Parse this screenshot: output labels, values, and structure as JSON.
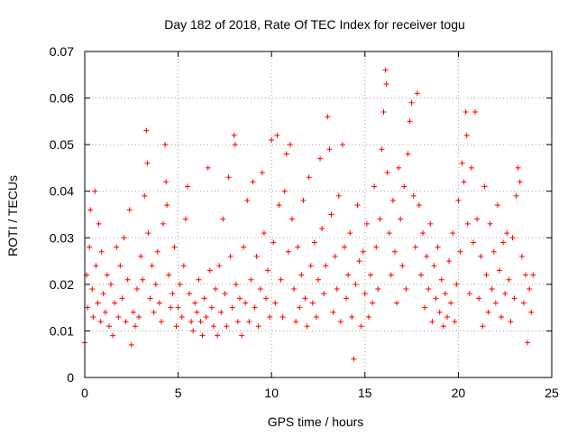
{
  "chart_data": {
    "type": "scatter",
    "title": "Day 182 of 2018, Rate Of TEC Index for receiver togu",
    "xlabel": "GPS time / hours",
    "ylabel": "ROTI / TECUs",
    "xlim": [
      0,
      25
    ],
    "ylim": [
      0,
      0.07
    ],
    "xticks": [
      0,
      5,
      10,
      15,
      20,
      25
    ],
    "xtick_labels": [
      "0",
      "5",
      "10",
      "15",
      "20",
      "25"
    ],
    "yticks": [
      0,
      0.01,
      0.02,
      0.03,
      0.04,
      0.05,
      0.06,
      0.07
    ],
    "ytick_labels": [
      "0",
      "0.01",
      "0.02",
      "0.03",
      "0.04",
      "0.05",
      "0.06",
      "0.07"
    ],
    "grid": true,
    "marker": "plus",
    "color": "#ff0000",
    "series": [
      {
        "name": "ROTI",
        "points": [
          [
            0.0,
            0.0075
          ],
          [
            0.1,
            0.022
          ],
          [
            0.15,
            0.015
          ],
          [
            0.25,
            0.028
          ],
          [
            0.3,
            0.036
          ],
          [
            0.4,
            0.019
          ],
          [
            0.45,
            0.013
          ],
          [
            0.55,
            0.04
          ],
          [
            0.6,
            0.024
          ],
          [
            0.7,
            0.016
          ],
          [
            0.75,
            0.033
          ],
          [
            0.85,
            0.012
          ],
          [
            0.9,
            0.027
          ],
          [
            1.0,
            0.018
          ],
          [
            1.1,
            0.014
          ],
          [
            1.2,
            0.022
          ],
          [
            1.3,
            0.011
          ],
          [
            1.4,
            0.02
          ],
          [
            1.5,
            0.009
          ],
          [
            1.6,
            0.016
          ],
          [
            1.7,
            0.028
          ],
          [
            1.8,
            0.013
          ],
          [
            1.9,
            0.024
          ],
          [
            2.0,
            0.017
          ],
          [
            2.1,
            0.03
          ],
          [
            2.2,
            0.012
          ],
          [
            2.3,
            0.021
          ],
          [
            2.4,
            0.036
          ],
          [
            2.5,
            0.007
          ],
          [
            2.6,
            0.014
          ],
          [
            2.7,
            0.011
          ],
          [
            2.8,
            0.019
          ],
          [
            2.9,
            0.013
          ],
          [
            3.0,
            0.026
          ],
          [
            3.1,
            0.021
          ],
          [
            3.2,
            0.039
          ],
          [
            3.3,
            0.053
          ],
          [
            3.35,
            0.046
          ],
          [
            3.4,
            0.031
          ],
          [
            3.5,
            0.017
          ],
          [
            3.6,
            0.024
          ],
          [
            3.7,
            0.014
          ],
          [
            3.8,
            0.02
          ],
          [
            3.9,
            0.027
          ],
          [
            4.0,
            0.016
          ],
          [
            4.1,
            0.012
          ],
          [
            4.2,
            0.033
          ],
          [
            4.3,
            0.05
          ],
          [
            4.35,
            0.042
          ],
          [
            4.4,
            0.037
          ],
          [
            4.5,
            0.022
          ],
          [
            4.6,
            0.015
          ],
          [
            4.7,
            0.018
          ],
          [
            4.8,
            0.028
          ],
          [
            4.9,
            0.011
          ],
          [
            5.0,
            0.015
          ],
          [
            5.1,
            0.02
          ],
          [
            5.2,
            0.013
          ],
          [
            5.3,
            0.024
          ],
          [
            5.4,
            0.034
          ],
          [
            5.5,
            0.041
          ],
          [
            5.6,
            0.018
          ],
          [
            5.7,
            0.012
          ],
          [
            5.8,
            0.01
          ],
          [
            5.9,
            0.016
          ],
          [
            6.0,
            0.014
          ],
          [
            6.1,
            0.021
          ],
          [
            6.2,
            0.012
          ],
          [
            6.3,
            0.009
          ],
          [
            6.4,
            0.017
          ],
          [
            6.5,
            0.013
          ],
          [
            6.6,
            0.045
          ],
          [
            6.7,
            0.023
          ],
          [
            6.8,
            0.015
          ],
          [
            6.9,
            0.011
          ],
          [
            7.0,
            0.019
          ],
          [
            7.1,
            0.009
          ],
          [
            7.2,
            0.024
          ],
          [
            7.3,
            0.014
          ],
          [
            7.4,
            0.034
          ],
          [
            7.5,
            0.018
          ],
          [
            7.6,
            0.011
          ],
          [
            7.7,
            0.043
          ],
          [
            7.8,
            0.026
          ],
          [
            7.9,
            0.015
          ],
          [
            8.0,
            0.052
          ],
          [
            8.05,
            0.05
          ],
          [
            8.1,
            0.02
          ],
          [
            8.2,
            0.012
          ],
          [
            8.3,
            0.017
          ],
          [
            8.4,
            0.009
          ],
          [
            8.5,
            0.028
          ],
          [
            8.6,
            0.016
          ],
          [
            8.7,
            0.038
          ],
          [
            8.8,
            0.012
          ],
          [
            8.9,
            0.021
          ],
          [
            9.0,
            0.042
          ],
          [
            9.1,
            0.015
          ],
          [
            9.2,
            0.026
          ],
          [
            9.3,
            0.011
          ],
          [
            9.4,
            0.019
          ],
          [
            9.5,
            0.044
          ],
          [
            9.6,
            0.031
          ],
          [
            9.7,
            0.017
          ],
          [
            9.8,
            0.023
          ],
          [
            9.9,
            0.013
          ],
          [
            10.0,
            0.051
          ],
          [
            10.1,
            0.029
          ],
          [
            10.2,
            0.016
          ],
          [
            10.3,
            0.052
          ],
          [
            10.4,
            0.037
          ],
          [
            10.5,
            0.021
          ],
          [
            10.6,
            0.013
          ],
          [
            10.7,
            0.04
          ],
          [
            10.8,
            0.048
          ],
          [
            10.9,
            0.027
          ],
          [
            11.0,
            0.05
          ],
          [
            11.1,
            0.034
          ],
          [
            11.2,
            0.019
          ],
          [
            11.3,
            0.012
          ],
          [
            11.4,
            0.028
          ],
          [
            11.5,
            0.015
          ],
          [
            11.6,
            0.022
          ],
          [
            11.7,
            0.038
          ],
          [
            11.8,
            0.017
          ],
          [
            11.9,
            0.011
          ],
          [
            12.0,
            0.043
          ],
          [
            12.1,
            0.024
          ],
          [
            12.2,
            0.016
          ],
          [
            12.3,
            0.029
          ],
          [
            12.4,
            0.013
          ],
          [
            12.5,
            0.021
          ],
          [
            12.6,
            0.047
          ],
          [
            12.7,
            0.032
          ],
          [
            12.8,
            0.018
          ],
          [
            12.9,
            0.024
          ],
          [
            13.0,
            0.056
          ],
          [
            13.1,
            0.049
          ],
          [
            13.2,
            0.035
          ],
          [
            13.3,
            0.014
          ],
          [
            13.4,
            0.026
          ],
          [
            13.5,
            0.019
          ],
          [
            13.6,
            0.039
          ],
          [
            13.7,
            0.012
          ],
          [
            13.8,
            0.05
          ],
          [
            13.9,
            0.028
          ],
          [
            14.0,
            0.017
          ],
          [
            14.1,
            0.022
          ],
          [
            14.2,
            0.031
          ],
          [
            14.3,
            0.013
          ],
          [
            14.4,
            0.004
          ],
          [
            14.5,
            0.02
          ],
          [
            14.6,
            0.037
          ],
          [
            14.7,
            0.025
          ],
          [
            14.8,
            0.011
          ],
          [
            14.9,
            0.027
          ],
          [
            15.0,
            0.018
          ],
          [
            15.1,
            0.033
          ],
          [
            15.2,
            0.013
          ],
          [
            15.3,
            0.022
          ],
          [
            15.4,
            0.016
          ],
          [
            15.5,
            0.041
          ],
          [
            15.6,
            0.028
          ],
          [
            15.7,
            0.019
          ],
          [
            15.8,
            0.034
          ],
          [
            15.9,
            0.049
          ],
          [
            16.0,
            0.057
          ],
          [
            16.1,
            0.066
          ],
          [
            16.15,
            0.063
          ],
          [
            16.2,
            0.044
          ],
          [
            16.3,
            0.031
          ],
          [
            16.4,
            0.022
          ],
          [
            16.5,
            0.038
          ],
          [
            16.6,
            0.027
          ],
          [
            16.7,
            0.016
          ],
          [
            16.8,
            0.045
          ],
          [
            16.9,
            0.034
          ],
          [
            17.0,
            0.024
          ],
          [
            17.1,
            0.041
          ],
          [
            17.2,
            0.019
          ],
          [
            17.3,
            0.048
          ],
          [
            17.4,
            0.055
          ],
          [
            17.5,
            0.059
          ],
          [
            17.6,
            0.039
          ],
          [
            17.7,
            0.028
          ],
          [
            17.8,
            0.061
          ],
          [
            17.9,
            0.037
          ],
          [
            18.0,
            0.022
          ],
          [
            18.1,
            0.031
          ],
          [
            18.2,
            0.015
          ],
          [
            18.3,
            0.026
          ],
          [
            18.4,
            0.019
          ],
          [
            18.5,
            0.033
          ],
          [
            18.6,
            0.012
          ],
          [
            18.7,
            0.024
          ],
          [
            18.8,
            0.017
          ],
          [
            18.9,
            0.028
          ],
          [
            19.0,
            0.014
          ],
          [
            19.1,
            0.021
          ],
          [
            19.2,
            0.011
          ],
          [
            19.3,
            0.018
          ],
          [
            19.4,
            0.013
          ],
          [
            19.5,
            0.025
          ],
          [
            19.6,
            0.016
          ],
          [
            19.7,
            0.031
          ],
          [
            19.8,
            0.012
          ],
          [
            19.9,
            0.02
          ],
          [
            20.0,
            0.038
          ],
          [
            20.1,
            0.027
          ],
          [
            20.2,
            0.046
          ],
          [
            20.3,
            0.042
          ],
          [
            20.4,
            0.057
          ],
          [
            20.45,
            0.052
          ],
          [
            20.5,
            0.033
          ],
          [
            20.6,
            0.018
          ],
          [
            20.7,
            0.045
          ],
          [
            20.8,
            0.029
          ],
          [
            20.9,
            0.057
          ],
          [
            21.0,
            0.034
          ],
          [
            21.1,
            0.017
          ],
          [
            21.2,
            0.026
          ],
          [
            21.3,
            0.011
          ],
          [
            21.4,
            0.041
          ],
          [
            21.5,
            0.022
          ],
          [
            21.6,
            0.014
          ],
          [
            21.7,
            0.033
          ],
          [
            21.8,
            0.019
          ],
          [
            21.9,
            0.027
          ],
          [
            22.0,
            0.016
          ],
          [
            22.1,
            0.037
          ],
          [
            22.2,
            0.023
          ],
          [
            22.3,
            0.013
          ],
          [
            22.4,
            0.029
          ],
          [
            22.5,
            0.018
          ],
          [
            22.6,
            0.031
          ],
          [
            22.7,
            0.021
          ],
          [
            22.8,
            0.012
          ],
          [
            22.9,
            0.03
          ],
          [
            23.0,
            0.017
          ],
          [
            23.1,
            0.039
          ],
          [
            23.2,
            0.045
          ],
          [
            23.3,
            0.042
          ],
          [
            23.4,
            0.026
          ],
          [
            23.5,
            0.016
          ],
          [
            23.6,
            0.022
          ],
          [
            23.7,
            0.0075
          ],
          [
            23.8,
            0.019
          ],
          [
            23.9,
            0.014
          ],
          [
            24.0,
            0.022
          ]
        ]
      }
    ]
  }
}
